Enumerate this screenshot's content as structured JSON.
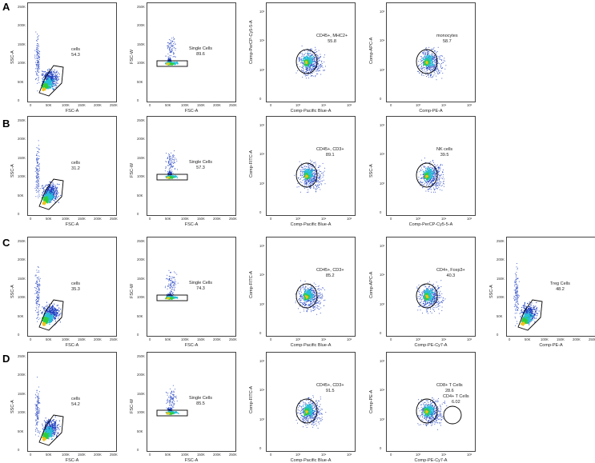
{
  "rows": [
    {
      "label": "A",
      "plots": [
        {
          "type": "fsc",
          "xlabel": "FSC-A",
          "ylabel": "SSC-A",
          "gate": "cells",
          "pct": "54.3"
        },
        {
          "type": "singlet",
          "xlabel": "FSC-A",
          "ylabel": "FSC-W",
          "gate": "Single Cells",
          "pct": "89.6"
        },
        {
          "type": "log",
          "xlabel": "Comp-Pacific Blue-A",
          "ylabel": "Comp-PerCP-Cy5-5-A",
          "gate": "CD45+, MHC2+",
          "pct": "55.8"
        },
        {
          "type": "log",
          "xlabel": "Comp-PE-A",
          "ylabel": "Comp-APC-A",
          "gate": "monocytes",
          "pct": "58.7"
        }
      ]
    },
    {
      "label": "B",
      "plots": [
        {
          "type": "fsc",
          "xlabel": "FSC-A",
          "ylabel": "SSC-A",
          "gate": "cells",
          "pct": "31.2"
        },
        {
          "type": "singlet",
          "xlabel": "FSC-A",
          "ylabel": "FSC-W",
          "gate": "Single Cells",
          "pct": "57.3"
        },
        {
          "type": "log",
          "xlabel": "Comp-Pacific Blue-A",
          "ylabel": "Comp-FITC-A",
          "gate": "CD45+, CD3+",
          "pct": "89.1"
        },
        {
          "type": "log",
          "xlabel": "Comp-PerCP-Cy5-5-A",
          "ylabel": "SSC-A",
          "gate": "NK cells",
          "pct": "39.5"
        }
      ]
    },
    {
      "label": "C",
      "plots": [
        {
          "type": "fsc",
          "xlabel": "FSC-A",
          "ylabel": "SSC-A",
          "gate": "cells",
          "pct": "35.3"
        },
        {
          "type": "singlet",
          "xlabel": "FSC-A",
          "ylabel": "FSC-W",
          "gate": "Single Cells",
          "pct": "74.3"
        },
        {
          "type": "log",
          "xlabel": "Comp-Pacific Blue-A",
          "ylabel": "Comp-FITC-A",
          "gate": "CD45+, CD3+",
          "pct": "85.2"
        },
        {
          "type": "log",
          "xlabel": "Comp-PE-Cy7-A",
          "ylabel": "Comp-APC-A",
          "gate": "CD4+, Foxp3+",
          "pct": "40.3"
        },
        {
          "type": "fsc",
          "xlabel": "Comp-PE-A",
          "ylabel": "SSC-A",
          "gate": "Treg Cells",
          "pct": "48.2"
        }
      ]
    },
    {
      "label": "D",
      "plots": [
        {
          "type": "fsc",
          "xlabel": "FSC-A",
          "ylabel": "SSC-A",
          "gate": "cells",
          "pct": "54.2"
        },
        {
          "type": "singlet",
          "xlabel": "FSC-A",
          "ylabel": "FSC-W",
          "gate": "Single Cells",
          "pct": "85.5"
        },
        {
          "type": "log",
          "xlabel": "Comp-Pacific Blue-A",
          "ylabel": "Comp-FITC-A",
          "gate": "CD45+, CD3+",
          "pct": "91.5"
        },
        {
          "type": "log2",
          "xlabel": "Comp-PE-Cy7-A",
          "ylabel": "Comp-PE-A",
          "gate": "CD8+ T Cells",
          "pct": "28.6",
          "gate2": "CD4+ T Cells",
          "pct2": "6.02"
        }
      ]
    }
  ],
  "linear_ticks_y": [
    "250K",
    "200K",
    "150K",
    "100K",
    "50K",
    "0"
  ],
  "linear_ticks_x": [
    "0",
    "50K",
    "100K",
    "150K",
    "200K",
    "250K"
  ],
  "log_ticks": [
    "0",
    "10³",
    "10⁴",
    "10⁵"
  ],
  "colors": {
    "scatter": "#1f3fbf",
    "dense": "#27c0d8",
    "core": "#2fcf3a",
    "hot": "#f2c11a"
  }
}
